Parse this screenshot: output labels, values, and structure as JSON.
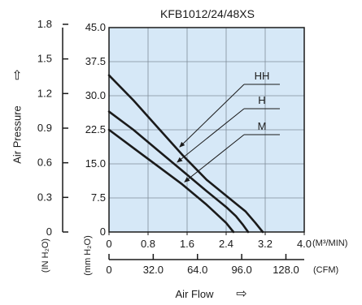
{
  "chart_data": {
    "type": "line",
    "title": "KFB1012/24/48XS",
    "xlabel": "Air Flow",
    "xlabel_arrow": "⇨",
    "ylabel": "Air Pressure",
    "ylabel_arrow": "⇨",
    "x_axis_m3min": {
      "unit": "(M³/MIN)",
      "range": [
        0,
        4.0
      ],
      "ticks": [
        "0",
        "0.8",
        "1.6",
        "2.4",
        "3.2",
        "4.0"
      ],
      "tick_values": [
        0,
        0.8,
        1.6,
        2.4,
        3.2,
        4.0
      ]
    },
    "x_axis_cfm": {
      "unit": "(CFM)",
      "ticks": [
        "0",
        "32.0",
        "64.0",
        "96.0",
        "128.0"
      ],
      "tick_values": [
        0,
        32,
        64,
        96,
        128
      ]
    },
    "y_axis_mmh2o": {
      "unit": "(mm H₂O)",
      "range": [
        0,
        45.0
      ],
      "ticks": [
        "0",
        "7.5",
        "15.0",
        "22.5",
        "30.0",
        "37.5",
        "45.0"
      ],
      "tick_values": [
        0,
        7.5,
        15,
        22.5,
        30,
        37.5,
        45
      ]
    },
    "y_axis_inh2o": {
      "unit": "(IN H₂O)",
      "ticks": [
        "0",
        "0.3",
        "0.6",
        "0.9",
        "1.2",
        "1.5",
        "1.8"
      ],
      "tick_values": [
        0,
        0.3,
        0.6,
        0.9,
        1.2,
        1.5,
        1.8
      ]
    },
    "grid": true,
    "colors": {
      "plot_background": "#d6e8f7",
      "grid": "#7f8c99",
      "curves": "#1a1a1a"
    },
    "series": [
      {
        "name": "HH",
        "x": [
          0,
          0.5,
          1.0,
          1.5,
          2.0,
          2.4,
          2.8,
          3.0,
          3.15
        ],
        "y": [
          34.5,
          29.0,
          23.0,
          17.0,
          11.5,
          8.0,
          4.5,
          2.0,
          0
        ]
      },
      {
        "name": "H",
        "x": [
          0,
          0.5,
          1.0,
          1.5,
          2.0,
          2.4,
          2.6,
          2.75,
          2.85
        ],
        "y": [
          26.5,
          22.5,
          18.0,
          13.5,
          9.0,
          5.5,
          3.5,
          1.5,
          0
        ]
      },
      {
        "name": "M",
        "x": [
          0,
          0.5,
          1.0,
          1.5,
          2.0,
          2.2,
          2.4,
          2.55
        ],
        "y": [
          22.5,
          18.5,
          14.5,
          10.5,
          6.0,
          4.0,
          2.0,
          0
        ]
      }
    ]
  }
}
